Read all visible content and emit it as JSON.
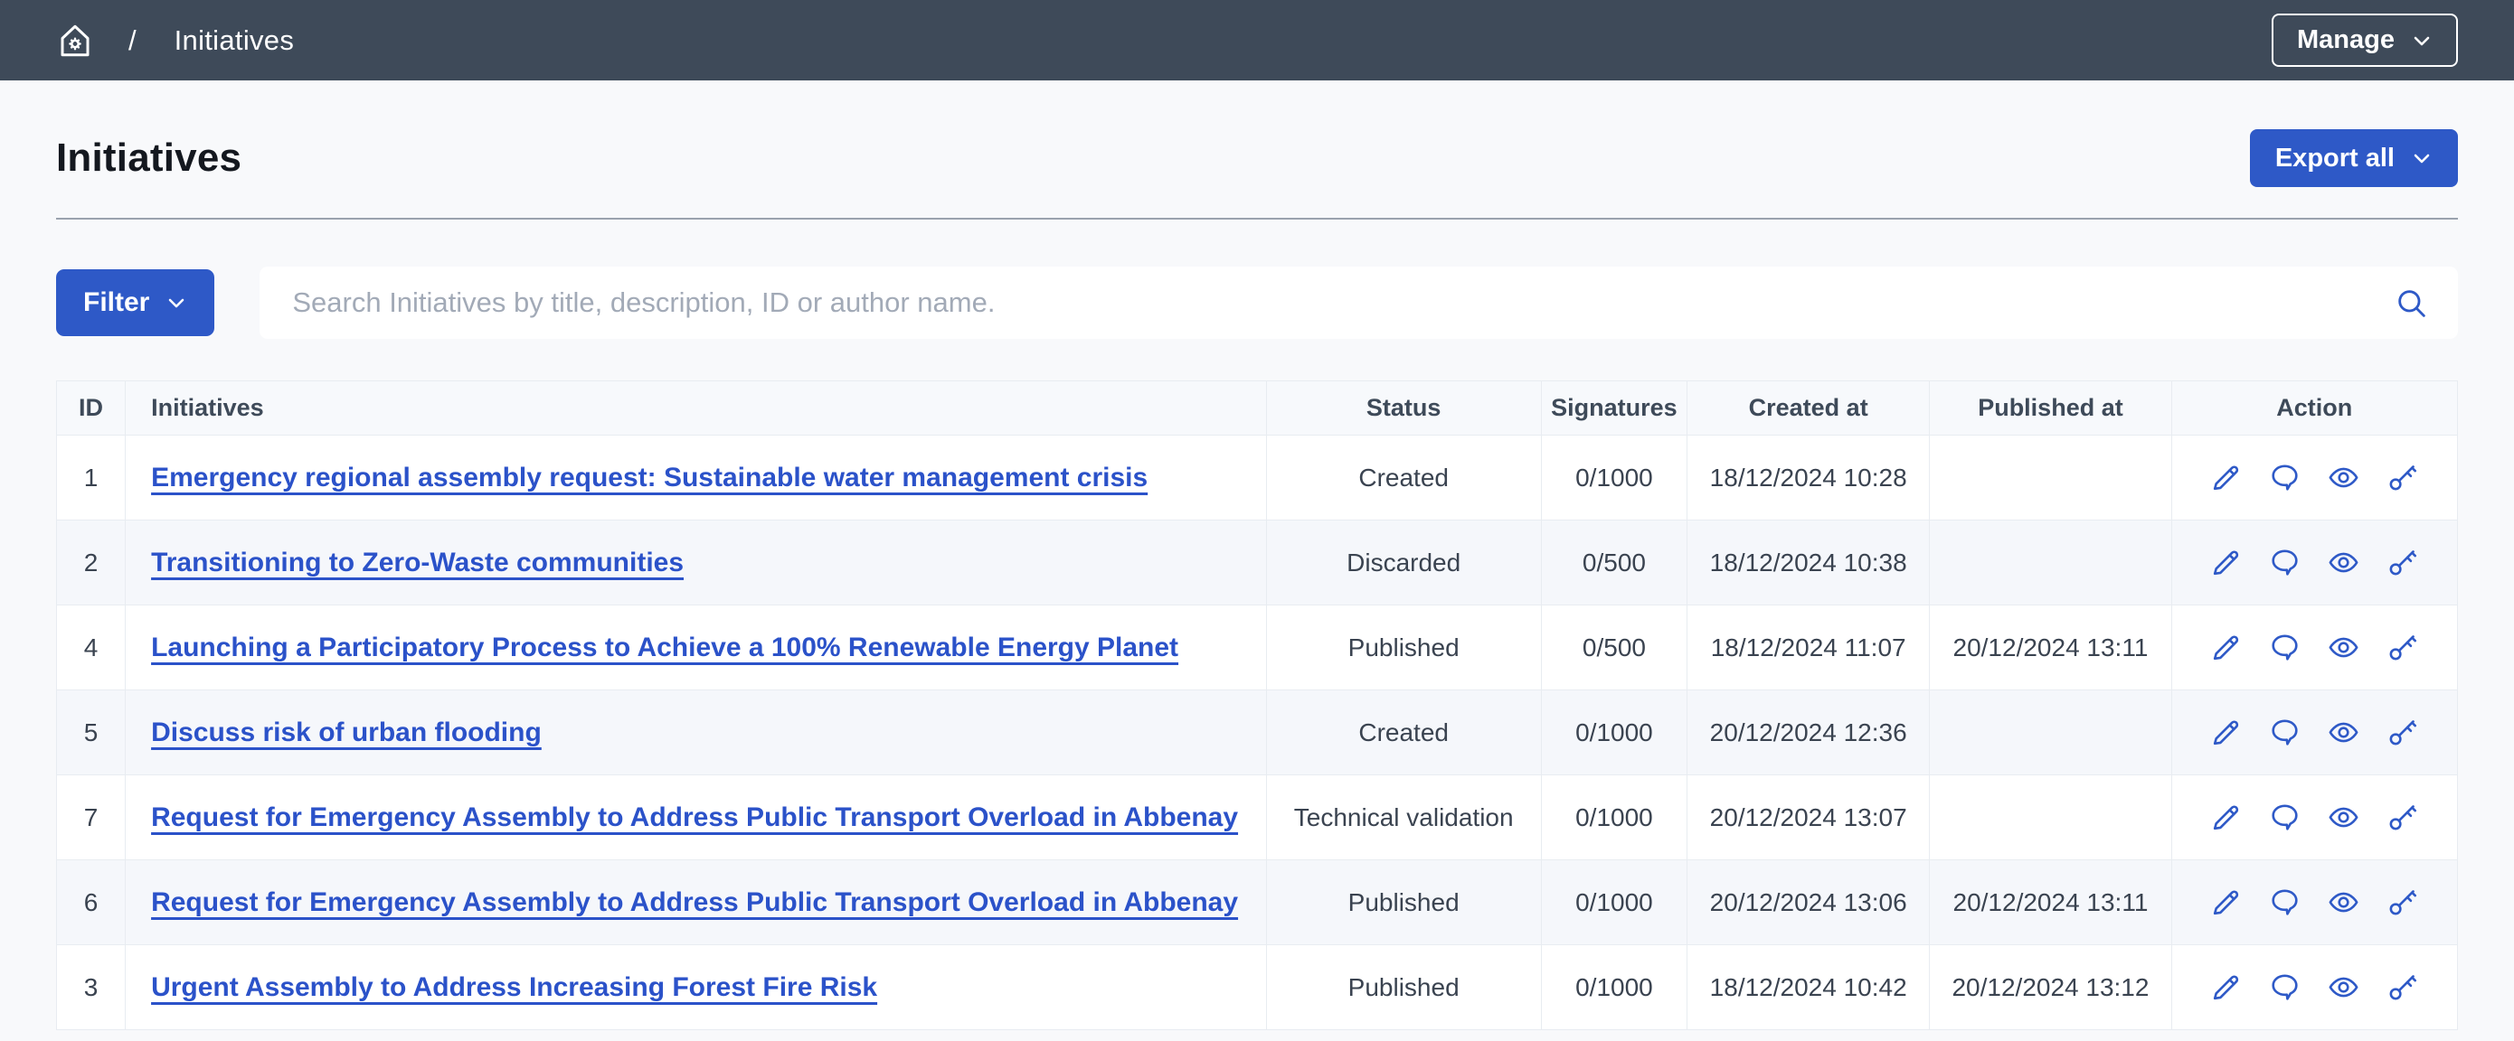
{
  "colors": {
    "accent": "#2e59c7",
    "link": "#2b52c9",
    "navbar": "#3e4a59",
    "page-bg": "#f8f9fb",
    "stripe": "#f5f7fb",
    "border": "#e8ecf1"
  },
  "topbar": {
    "home_icon": "home-gear-icon",
    "separator": "/",
    "breadcrumb_current": "Initiatives",
    "manage_label": "Manage"
  },
  "header": {
    "title": "Initiatives",
    "export_label": "Export all"
  },
  "toolbar": {
    "filter_label": "Filter",
    "search_placeholder": "Search Initiatives by title, description, ID or author name.",
    "search_value": "",
    "search_icon": "search-icon"
  },
  "table": {
    "columns": [
      "ID",
      "Initiatives",
      "Status",
      "Signatures",
      "Created at",
      "Published at",
      "Action"
    ],
    "action_icons": [
      "edit-pencil-icon",
      "comment-bubble-icon",
      "preview-eye-icon",
      "permissions-key-icon"
    ],
    "rows": [
      {
        "id": "1",
        "title": "Emergency regional assembly request: Sustainable water management crisis",
        "status": "Created",
        "signatures": "0/1000",
        "created_at": "18/12/2024 10:28",
        "published_at": ""
      },
      {
        "id": "2",
        "title": "Transitioning to Zero-Waste communities",
        "status": "Discarded",
        "signatures": "0/500",
        "created_at": "18/12/2024 10:38",
        "published_at": ""
      },
      {
        "id": "4",
        "title": "Launching a Participatory Process to Achieve a 100% Renewable Energy Planet",
        "status": "Published",
        "signatures": "0/500",
        "created_at": "18/12/2024 11:07",
        "published_at": "20/12/2024 13:11"
      },
      {
        "id": "5",
        "title": "Discuss risk of urban flooding",
        "status": "Created",
        "signatures": "0/1000",
        "created_at": "20/12/2024 12:36",
        "published_at": ""
      },
      {
        "id": "7",
        "title": "Request for Emergency Assembly to Address Public Transport Overload in Abbenay",
        "status": "Technical validation",
        "signatures": "0/1000",
        "created_at": "20/12/2024 13:07",
        "published_at": ""
      },
      {
        "id": "6",
        "title": "Request for Emergency Assembly to Address Public Transport Overload in Abbenay",
        "status": "Published",
        "signatures": "0/1000",
        "created_at": "20/12/2024 13:06",
        "published_at": "20/12/2024 13:11"
      },
      {
        "id": "3",
        "title": "Urgent Assembly to Address Increasing Forest Fire Risk",
        "status": "Published",
        "signatures": "0/1000",
        "created_at": "18/12/2024 10:42",
        "published_at": "20/12/2024 13:12"
      }
    ]
  }
}
